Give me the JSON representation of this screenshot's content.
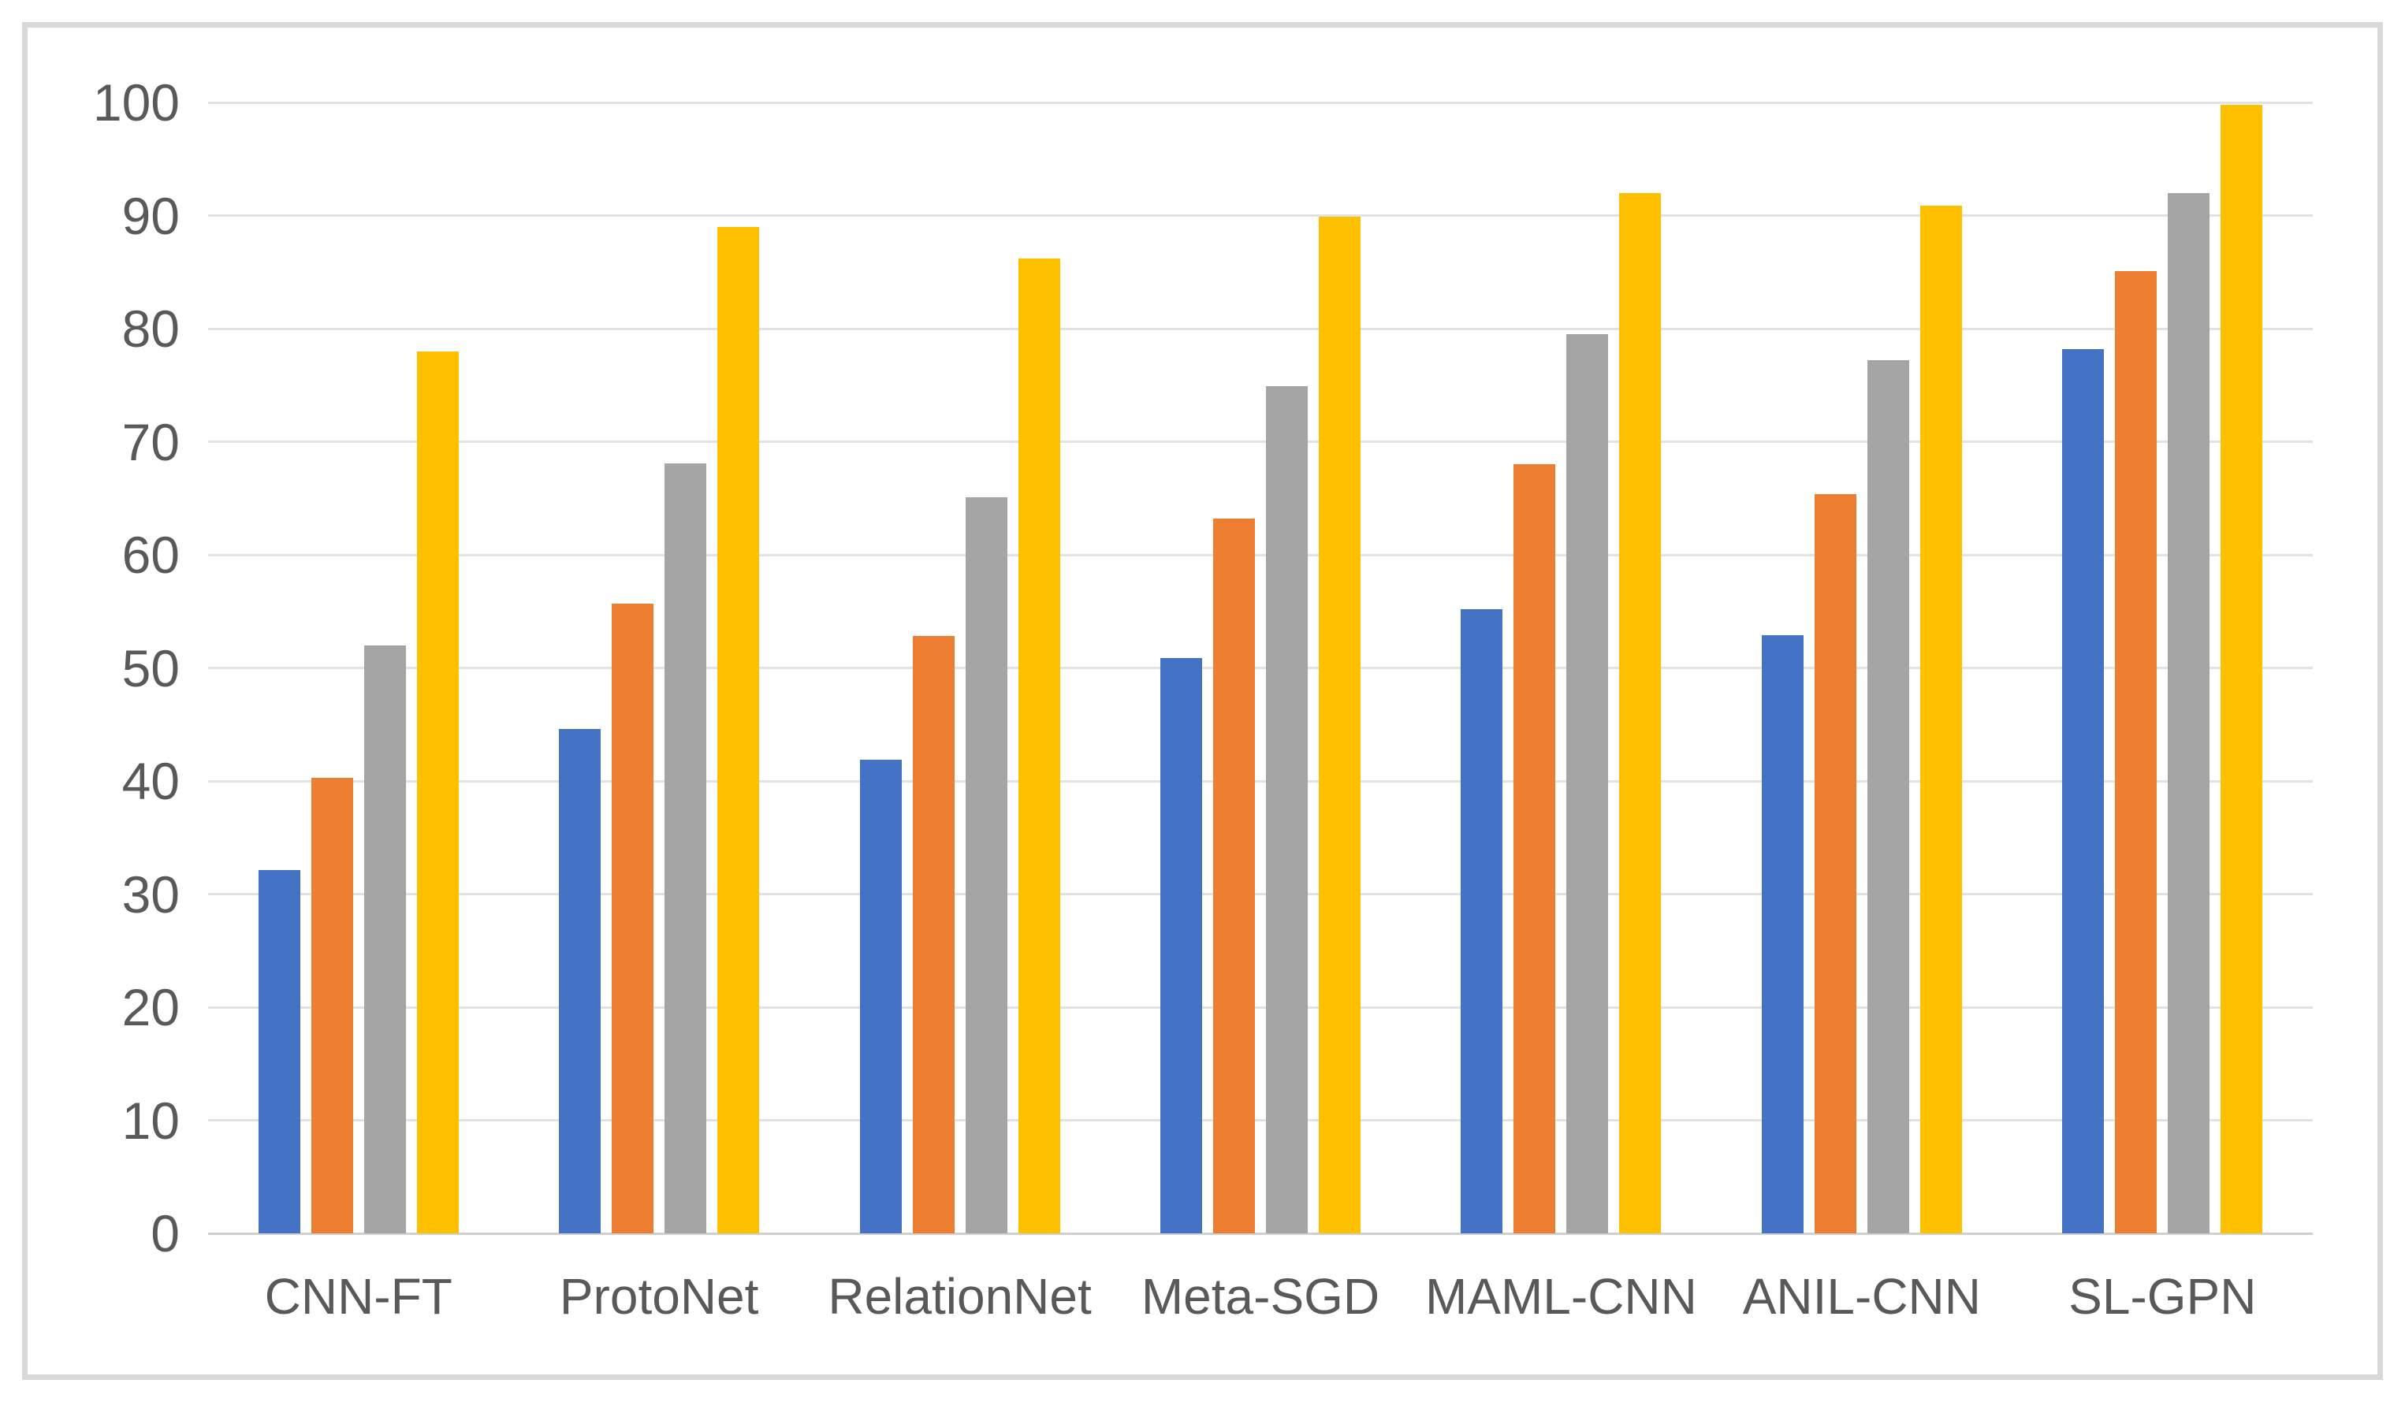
{
  "chart_data": {
    "type": "bar",
    "title": "",
    "xlabel": "",
    "ylabel": "",
    "categories": [
      "CNN-FT",
      "ProtoNet",
      "RelationNet",
      "Meta-SGD",
      "MAML-CNN",
      "ANIL-CNN",
      "SL-GPN"
    ],
    "series": [
      {
        "name": "blue",
        "color": "#4472C4",
        "values": [
          32.1,
          44.6,
          41.9,
          50.9,
          55.2,
          52.9,
          78.2
        ]
      },
      {
        "name": "orange",
        "color": "#ED7D31",
        "values": [
          40.3,
          55.7,
          52.8,
          63.2,
          68.0,
          65.4,
          85.1
        ]
      },
      {
        "name": "gray",
        "color": "#A5A5A5",
        "values": [
          52.0,
          68.1,
          65.1,
          74.9,
          79.5,
          77.2,
          92.0
        ]
      },
      {
        "name": "yellow",
        "color": "#FFC000",
        "values": [
          78.0,
          89.0,
          86.2,
          89.9,
          92.0,
          90.9,
          99.8
        ]
      }
    ],
    "ylim": [
      0,
      100
    ],
    "ytick_step": 10,
    "ytick_labels": [
      "0",
      "10",
      "20",
      "30",
      "40",
      "50",
      "60",
      "70",
      "80",
      "90",
      "100"
    ],
    "grid": "horizontal",
    "legend": "none"
  },
  "style": {
    "background_color": "#FFFFFF",
    "frame_border_color": "#D9D9D9",
    "gridline_color": "#E2E2E2",
    "axis_line_color": "#D0D0D0",
    "tick_label_color": "#595959"
  }
}
